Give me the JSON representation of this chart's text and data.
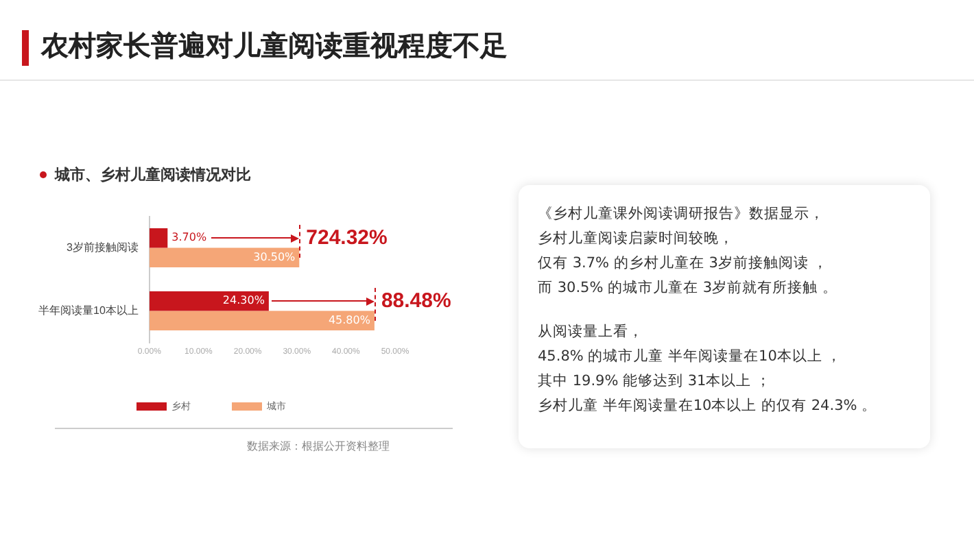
{
  "chart_data": [
    {
      "type": "bar",
      "orientation": "horizontal",
      "title": "农村家长普遍对儿童阅读重视程度不足",
      "subtitle": "城市、乡村儿童阅读情况对比",
      "categories": [
        "3岁前接触阅读",
        "半年阅读量10本以上"
      ],
      "series": [
        {
          "name": "乡村",
          "color": "#c8161d",
          "values": [
            3.7,
            24.3
          ],
          "value_labels": [
            "3.70%",
            "24.30%"
          ]
        },
        {
          "name": "城市",
          "color": "#f5a677",
          "values": [
            30.5,
            45.8
          ],
          "value_labels": [
            "30.50%",
            "45.80%"
          ]
        }
      ],
      "xlim": [
        0,
        50
      ],
      "xticks": [
        {
          "value": 0,
          "label": "0.00%"
        },
        {
          "value": 10,
          "label": "10.00%"
        },
        {
          "value": 20,
          "label": "20.00%"
        },
        {
          "value": 30,
          "label": "30.00%"
        },
        {
          "value": 40,
          "label": "40.00%"
        },
        {
          "value": 50,
          "label": "50.00%"
        }
      ],
      "grid": false,
      "legend": "bottom",
      "annotations": [
        {
          "text": "724.32%",
          "x": 30.5,
          "y": "3岁前接触阅读"
        },
        {
          "text": "88.48%",
          "x": 45.8,
          "y": "半年阅读量10本以上"
        },
        "数据来源：根据公开资料整理"
      ]
    },
    {
      "type": "other",
      "annotations": [
        "《乡村儿童课外阅读调研报告》数据显示，",
        "乡村儿童阅读启蒙时间较晚，",
        "仅有 3.7% 的乡村儿童在 3岁前接触阅读 ，",
        "而 30.5% 的城市儿童在 3岁前就有所接触 。",
        "从阅读量上看，",
        "45.8% 的城市儿童 半年阅读量在10本以上 ，",
        "其中 19.9% 能够达到 31本以上 ；",
        "乡村儿童 半年阅读量在10本以上 的仅有 24.3% 。"
      ]
    }
  ]
}
